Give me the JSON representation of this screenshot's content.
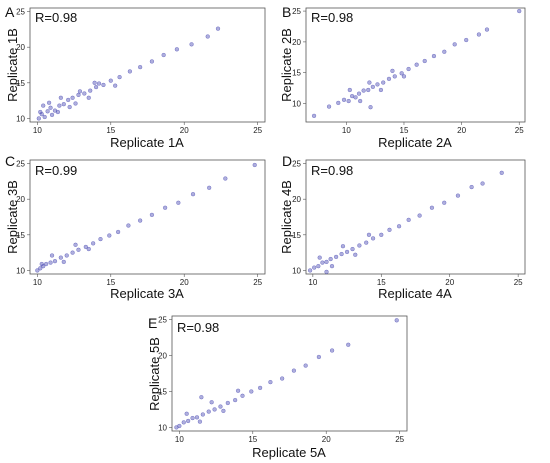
{
  "chart_data": [
    {
      "type": "scatter",
      "panel": "A",
      "annotation": "R=0.98",
      "xlabel": "Replicate 1A",
      "ylabel": "Replicate 1B",
      "xlim": [
        9.5,
        25.5
      ],
      "ylim": [
        9.5,
        25.5
      ],
      "x_ticks": [
        "10",
        "15",
        "20",
        "25"
      ],
      "y_ticks": [
        "10",
        "15",
        "20",
        "25"
      ],
      "point_color": "#4b4bb4",
      "x": [
        10.1,
        10.3,
        10.5,
        10.7,
        10.9,
        11.2,
        11.5,
        11.8,
        12.1,
        12.4,
        12.8,
        13.2,
        13.6,
        14.0,
        14.5,
        15.0,
        15.6,
        16.3,
        17.0,
        17.8,
        18.6,
        19.5,
        20.5,
        21.6,
        22.3,
        10.4,
        11.0,
        11.6,
        12.2,
        12.9,
        13.5,
        14.2,
        10.2,
        10.8,
        11.4,
        12.6,
        13.9,
        15.3
      ],
      "y": [
        10.0,
        10.6,
        10.2,
        11.0,
        11.5,
        11.1,
        11.8,
        12.0,
        12.6,
        12.9,
        13.3,
        13.5,
        13.9,
        14.4,
        14.7,
        15.3,
        15.8,
        16.6,
        17.2,
        18.0,
        18.9,
        19.7,
        20.4,
        21.5,
        22.6,
        11.8,
        10.5,
        12.9,
        11.6,
        13.8,
        12.9,
        14.9,
        10.9,
        12.2,
        10.9,
        12.1,
        15.0,
        14.6
      ]
    },
    {
      "type": "scatter",
      "panel": "B",
      "annotation": "R=0.98",
      "xlabel": "Replicate 2A",
      "ylabel": "Replicate 2B",
      "xlim": [
        6.5,
        25.5
      ],
      "ylim": [
        7.0,
        25.5
      ],
      "x_ticks": [
        "10",
        "15",
        "20",
        "25"
      ],
      "y_ticks": [
        "10",
        "15",
        "20",
        "25"
      ],
      "point_color": "#4b4bb4",
      "x": [
        7.2,
        8.5,
        9.3,
        9.8,
        10.2,
        10.5,
        10.8,
        11.1,
        11.5,
        11.9,
        12.3,
        12.7,
        13.2,
        13.7,
        14.2,
        14.8,
        15.4,
        16.1,
        16.8,
        17.6,
        18.5,
        19.4,
        20.4,
        21.5,
        22.2,
        25.0,
        10.3,
        11.2,
        12.0,
        13.0,
        14.0,
        15.0,
        12.1
      ],
      "y": [
        8.0,
        9.5,
        10.1,
        10.6,
        10.4,
        11.2,
        11.0,
        11.6,
        12.1,
        12.2,
        12.7,
        13.1,
        13.4,
        14.0,
        14.4,
        14.9,
        15.6,
        16.3,
        16.9,
        17.7,
        18.4,
        19.6,
        20.3,
        21.2,
        22.0,
        25.0,
        12.2,
        10.4,
        13.4,
        12.2,
        15.3,
        14.4,
        9.4
      ]
    },
    {
      "type": "scatter",
      "panel": "C",
      "annotation": "R=0.99",
      "xlabel": "Replicate 3A",
      "ylabel": "Replicate 3B",
      "xlim": [
        9.5,
        25.5
      ],
      "ylim": [
        9.5,
        25.5
      ],
      "x_ticks": [
        "10",
        "15",
        "20",
        "25"
      ],
      "y_ticks": [
        "10",
        "15",
        "20",
        "25"
      ],
      "point_color": "#4b4bb4",
      "x": [
        10.0,
        10.2,
        10.4,
        10.6,
        10.9,
        11.2,
        11.6,
        12.0,
        12.4,
        12.8,
        13.3,
        13.8,
        14.3,
        14.9,
        15.5,
        16.2,
        17.0,
        17.8,
        18.7,
        19.6,
        20.6,
        21.7,
        22.8,
        24.8,
        11.0,
        11.8,
        12.6,
        10.3,
        13.5
      ],
      "y": [
        10.0,
        10.3,
        10.6,
        10.9,
        11.1,
        11.3,
        11.8,
        12.1,
        12.5,
        12.9,
        13.3,
        13.8,
        14.4,
        14.9,
        15.4,
        16.3,
        17.0,
        17.8,
        18.8,
        19.5,
        20.7,
        21.6,
        22.9,
        24.8,
        12.1,
        11.2,
        13.6,
        10.9,
        13.0
      ]
    },
    {
      "type": "scatter",
      "panel": "D",
      "annotation": "R=0.98",
      "xlabel": "Replicate 4A",
      "ylabel": "Replicate 4B",
      "xlim": [
        9.5,
        25.5
      ],
      "ylim": [
        9.5,
        25.5
      ],
      "x_ticks": [
        "10",
        "15",
        "20",
        "25"
      ],
      "y_ticks": [
        "10",
        "15",
        "20",
        "25"
      ],
      "point_color": "#4b4bb4",
      "x": [
        9.8,
        10.1,
        10.4,
        10.7,
        11.0,
        11.3,
        11.7,
        12.1,
        12.5,
        12.9,
        13.4,
        13.9,
        14.4,
        15.0,
        15.6,
        16.3,
        17.0,
        17.8,
        18.7,
        19.6,
        20.6,
        21.6,
        22.4,
        23.8,
        10.5,
        11.4,
        12.2,
        13.1,
        14.1,
        11.0
      ],
      "y": [
        10.0,
        10.4,
        10.6,
        11.1,
        11.2,
        11.6,
        11.9,
        12.3,
        12.6,
        13.0,
        13.5,
        13.9,
        14.5,
        15.0,
        15.7,
        16.2,
        17.1,
        17.7,
        18.8,
        19.5,
        20.5,
        21.7,
        22.2,
        23.7,
        11.8,
        10.6,
        13.4,
        12.2,
        15.0,
        9.8
      ]
    },
    {
      "type": "scatter",
      "panel": "E",
      "annotation": "R=0.98",
      "xlabel": "Replicate 5A",
      "ylabel": "Replicate 5B",
      "xlim": [
        9.5,
        25.5
      ],
      "ylim": [
        9.5,
        25.5
      ],
      "x_ticks": [
        "10",
        "15",
        "20",
        "25"
      ],
      "y_ticks": [
        "10",
        "15",
        "20",
        "25"
      ],
      "point_color": "#4b4bb4",
      "x": [
        9.8,
        10.0,
        10.3,
        10.6,
        10.9,
        11.2,
        11.6,
        12.0,
        12.4,
        12.8,
        13.3,
        13.8,
        14.3,
        14.9,
        15.5,
        16.2,
        17.0,
        17.8,
        18.6,
        19.5,
        20.4,
        21.5,
        24.8,
        10.5,
        11.4,
        12.2,
        13.0,
        14.0,
        11.5
      ],
      "y": [
        10.0,
        10.2,
        10.7,
        10.9,
        11.3,
        11.4,
        11.8,
        12.2,
        12.5,
        12.9,
        13.4,
        13.8,
        14.4,
        15.0,
        15.5,
        16.3,
        16.8,
        17.9,
        18.6,
        19.8,
        20.7,
        21.5,
        24.9,
        11.9,
        10.8,
        13.5,
        12.3,
        15.1,
        14.2
      ]
    }
  ]
}
